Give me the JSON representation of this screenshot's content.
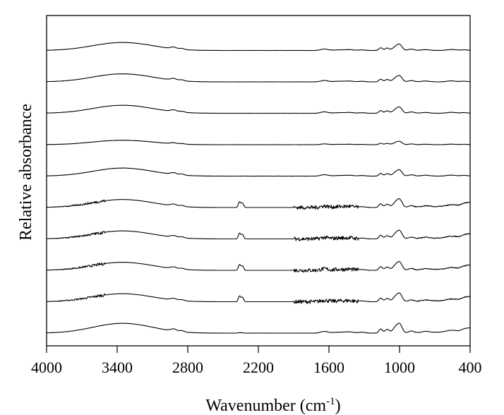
{
  "chart_data": {
    "type": "line",
    "title": "",
    "xlabel_main": "Wavenumber (cm",
    "xlabel_sup": "-1",
    "xlabel_close": ")",
    "ylabel": "Relative absorbance",
    "xlim": [
      4000,
      400
    ],
    "x_reversed": true,
    "x_ticks": [
      4000,
      3400,
      2800,
      2200,
      1600,
      1000,
      400
    ],
    "x_tick_labels": [
      "4000",
      "3400",
      "2800",
      "2200",
      "1600",
      "1000",
      "400"
    ],
    "y_ticks_shown": false,
    "grid": false,
    "legend": "none",
    "stack_offset": 1.0,
    "series": [
      {
        "values_baseline": 0.0,
        "oh_band": 0.55,
        "ch_band": 0.12,
        "fingerprint": 0.85,
        "co2_peak": 0.05,
        "noisy": false
      },
      {
        "values_baseline": 1.0,
        "oh_band": 0.45,
        "ch_band": 0.1,
        "fingerprint": 0.75,
        "co2_peak": 0.55,
        "noisy": true
      },
      {
        "values_baseline": 2.0,
        "oh_band": 0.45,
        "ch_band": 0.1,
        "fingerprint": 0.75,
        "co2_peak": 0.55,
        "noisy": true
      },
      {
        "values_baseline": 3.0,
        "oh_band": 0.45,
        "ch_band": 0.1,
        "fingerprint": 0.75,
        "co2_peak": 0.55,
        "noisy": true
      },
      {
        "values_baseline": 4.0,
        "oh_band": 0.45,
        "ch_band": 0.1,
        "fingerprint": 0.75,
        "co2_peak": 0.55,
        "noisy": true
      },
      {
        "values_baseline": 5.0,
        "oh_band": 0.45,
        "ch_band": 0.1,
        "fingerprint": 0.55,
        "co2_peak": 0.0,
        "noisy": false
      },
      {
        "values_baseline": 6.0,
        "oh_band": 0.25,
        "ch_band": 0.06,
        "fingerprint": 0.3,
        "co2_peak": 0.0,
        "noisy": false
      },
      {
        "values_baseline": 7.0,
        "oh_band": 0.45,
        "ch_band": 0.1,
        "fingerprint": 0.55,
        "co2_peak": 0.0,
        "noisy": false
      },
      {
        "values_baseline": 8.0,
        "oh_band": 0.45,
        "ch_band": 0.1,
        "fingerprint": 0.55,
        "co2_peak": 0.0,
        "noisy": false
      },
      {
        "values_baseline": 9.0,
        "oh_band": 0.45,
        "ch_band": 0.1,
        "fingerprint": 0.55,
        "co2_peak": 0.0,
        "noisy": false
      }
    ]
  }
}
